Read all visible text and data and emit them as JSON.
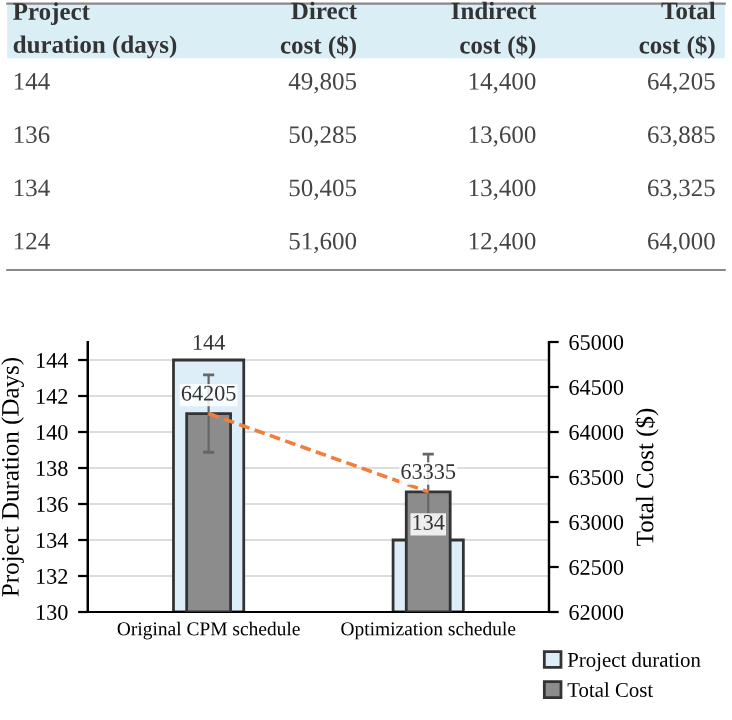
{
  "chart_data": [
    {
      "type": "other",
      "annotations": [
        "Project\nduration (days)",
        "Direct\ncost ($)",
        "Indirect\ncost ($)",
        "Total\ncost ($)",
        "144",
        "49,805",
        "14,400",
        "64,205",
        "136",
        "50,285",
        "13,600",
        "63,885",
        "134",
        "50,405",
        "13,400",
        "63,325",
        "124",
        "51,600",
        "12,400",
        "64,000"
      ]
    },
    {
      "type": "bar",
      "categories": [
        "Original CPM schedule",
        "Optimization schedule"
      ],
      "series": [
        {
          "name": "Project duration",
          "color": "#ddeef8",
          "values": [
            144,
            134
          ],
          "value_labels": [
            "144",
            "134"
          ]
        },
        {
          "name": "Total Cost",
          "color": "#8c8c8c",
          "values": [
            64205,
            63335
          ],
          "axis": "y2",
          "errors": [
            430,
            420
          ],
          "value_labels": [
            "64205",
            "63335"
          ]
        },
        {
          "type": "line",
          "color": "#f07f3c",
          "values": [
            64205,
            63335
          ],
          "axis": "y2",
          "line_style": "dashed"
        }
      ],
      "ylabel": "Project Duration (Days)",
      "y2label": "Total Cost ($)",
      "ylim": [
        130,
        145
      ],
      "yticks": [
        130,
        132,
        134,
        136,
        138,
        140,
        142,
        144
      ],
      "y2lim": [
        62000,
        65000
      ],
      "y2ticks": [
        62000,
        62500,
        63000,
        63500,
        64000,
        64500,
        65000
      ],
      "grid": "y",
      "legend": "bottom right"
    }
  ]
}
